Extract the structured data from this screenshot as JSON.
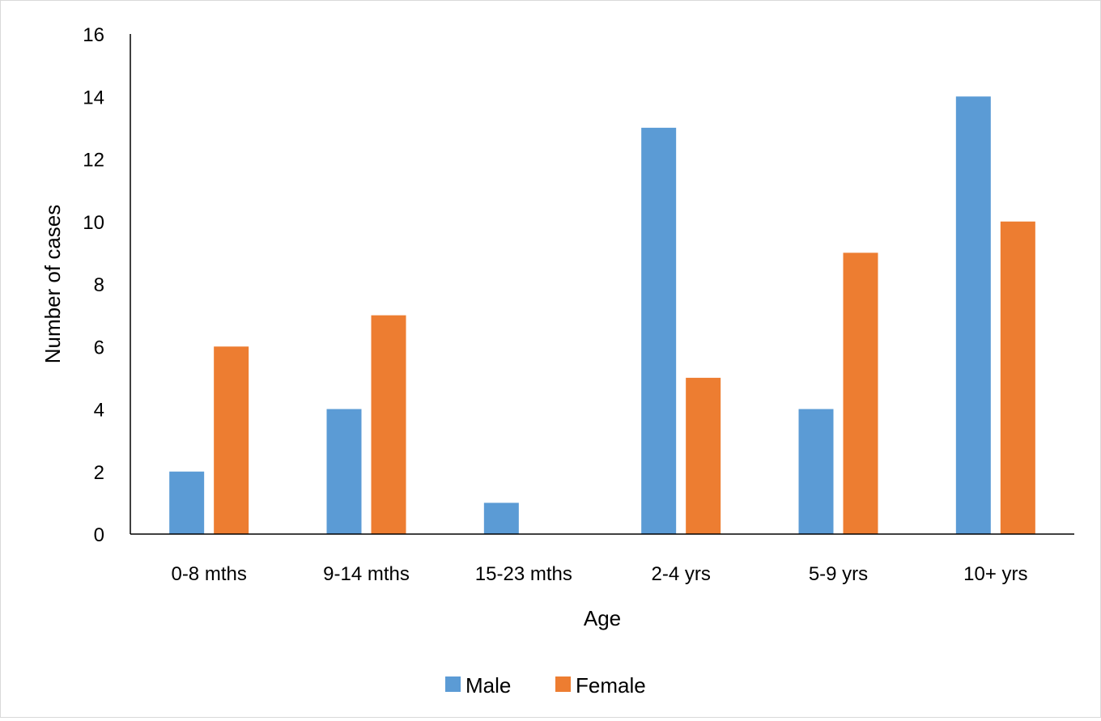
{
  "chart_data": {
    "type": "bar",
    "title": "",
    "xlabel": "Age",
    "ylabel": "Number of cases",
    "categories": [
      "0-8 mths",
      "9-14 mths",
      "15-23 mths",
      "2-4 yrs",
      "5-9 yrs",
      "10+  yrs"
    ],
    "series": [
      {
        "name": "Male",
        "color": "#5b9bd5",
        "values": [
          2,
          4,
          1,
          13,
          4,
          14
        ]
      },
      {
        "name": "Female",
        "color": "#ed7d31",
        "values": [
          6,
          7,
          0,
          5,
          9,
          10
        ]
      }
    ],
    "ylim": [
      0,
      16
    ],
    "yticks": [
      "0",
      "2",
      "4",
      "6",
      "8",
      "10",
      "12",
      "14",
      "16"
    ],
    "grid": false,
    "legend_position": "bottom"
  }
}
